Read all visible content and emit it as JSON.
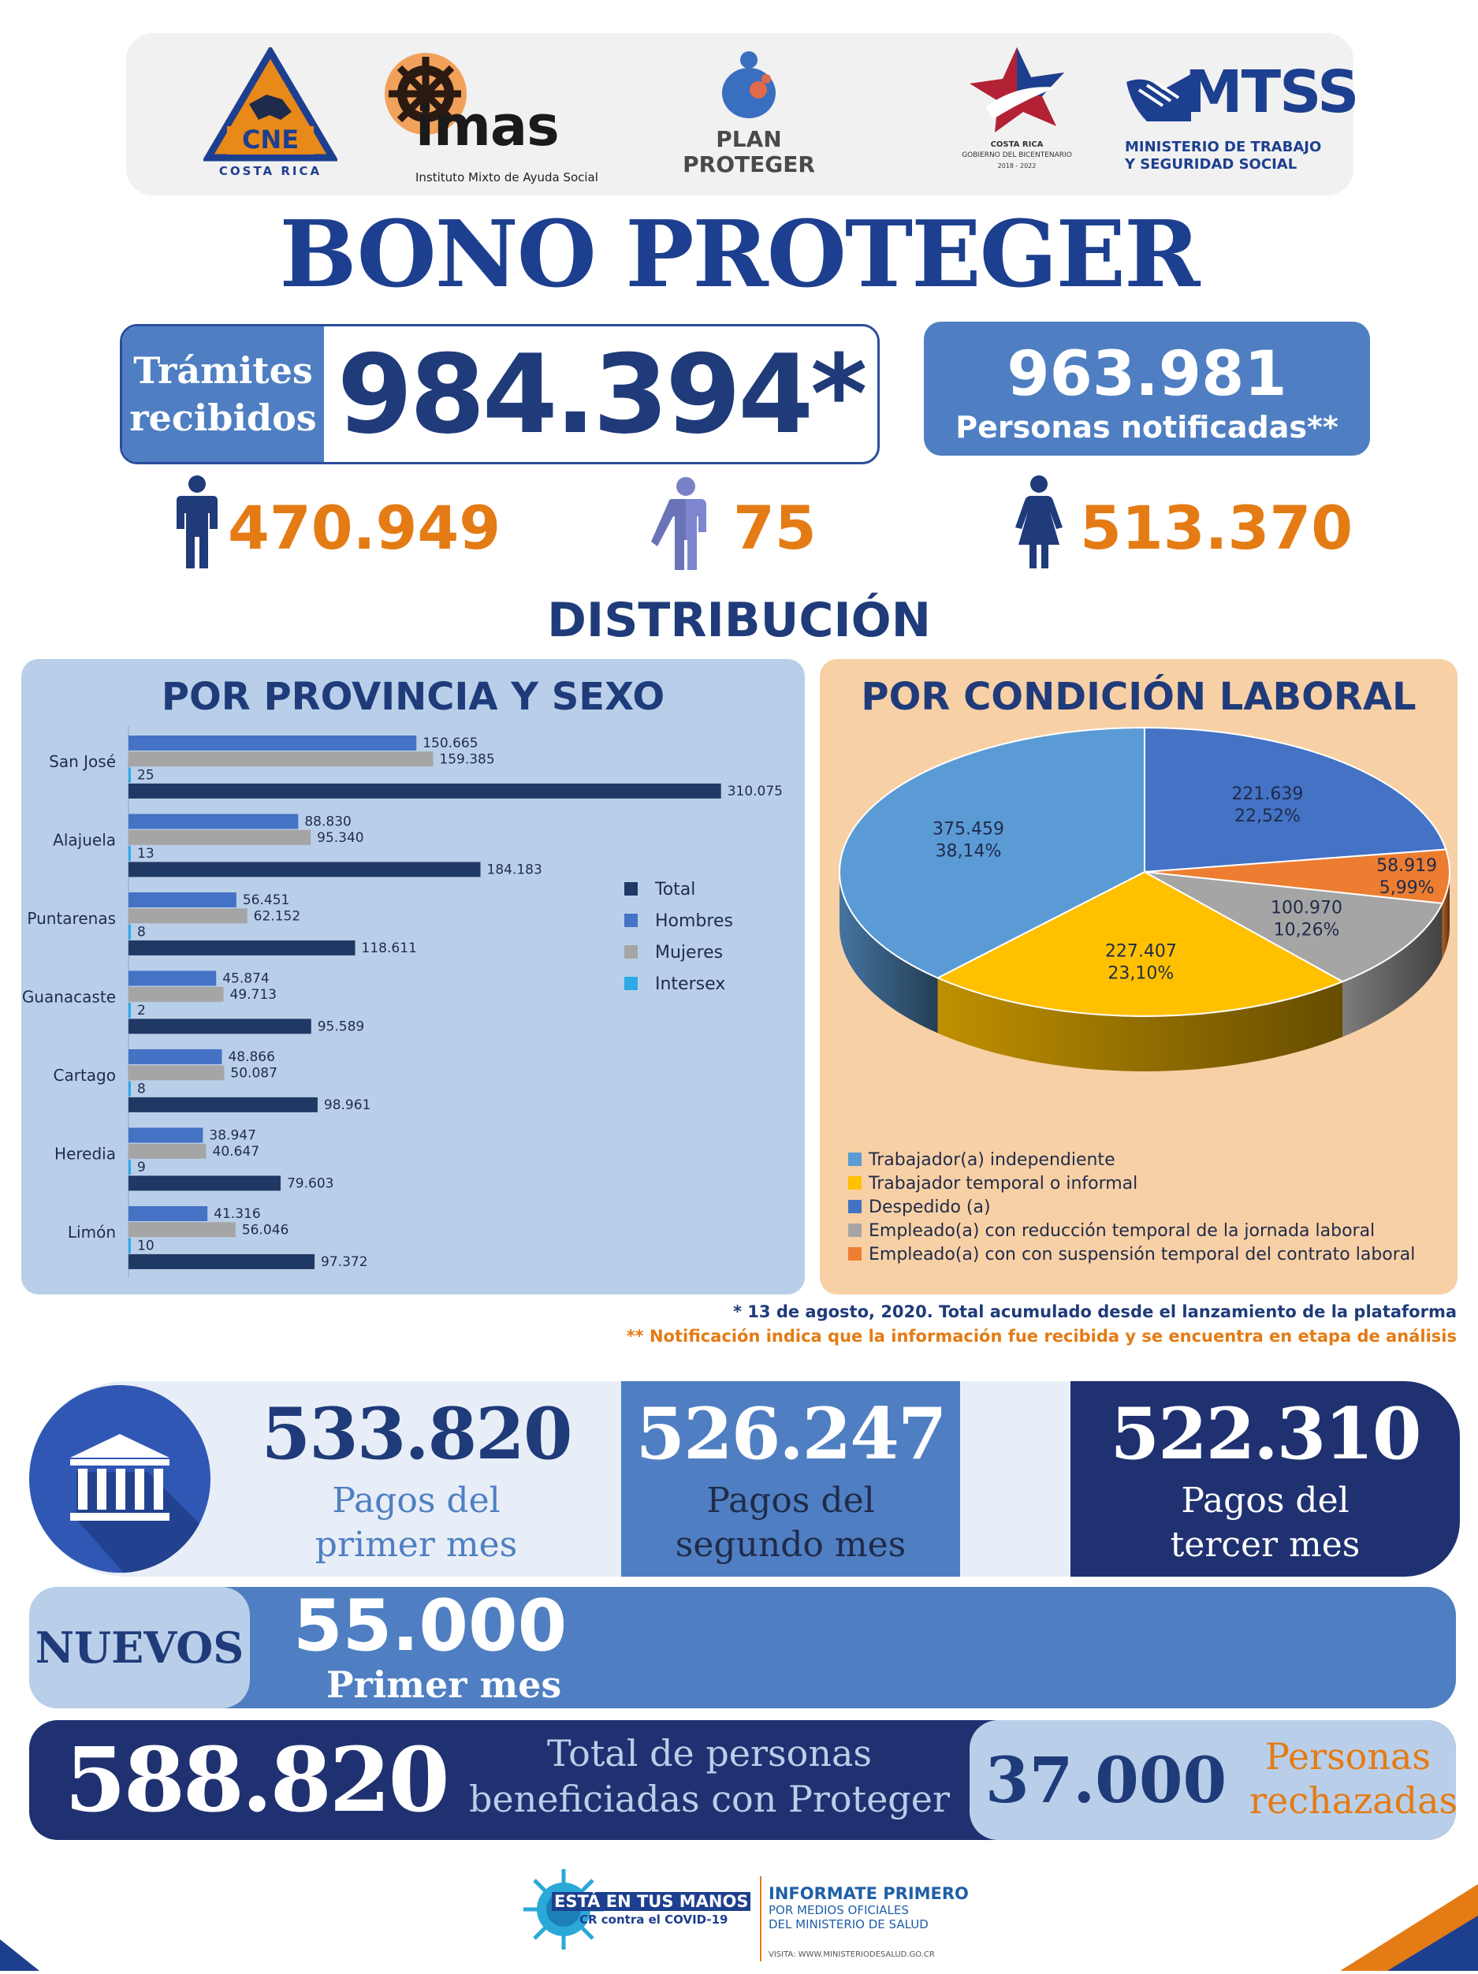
{
  "logos": {
    "cne": {
      "main": "CNE",
      "sub": "COSTA RICA"
    },
    "imas": {
      "main": "imas",
      "sub": "Instituto Mixto de Ayuda Social"
    },
    "plan": {
      "line1": "PLAN",
      "line2": "PROTEGER"
    },
    "gobierno": {
      "line1": "COSTA RICA",
      "line2": "GOBIERNO DEL BICENTENARIO",
      "line3": "2018 - 2022"
    },
    "mtss": {
      "main": "MTSS",
      "line1": "MINISTERIO DE TRABAJO",
      "line2": "Y SEGURIDAD SOCIAL"
    }
  },
  "title": "BONO PROTEGER",
  "tramites": {
    "label_line1": "Trámites",
    "label_line2": "recibidos",
    "value": "984.394*"
  },
  "notificadas": {
    "value": "963.981",
    "label": "Personas notificadas**"
  },
  "sex_counts": {
    "men": "470.949",
    "intersex": "75",
    "women": "513.370"
  },
  "distribution_title": "DISTRIBUCIÓN",
  "chart_data": [
    {
      "type": "bar",
      "title": "POR PROVINCIA Y SEXO",
      "orientation": "horizontal",
      "categories": [
        "San José",
        "Alajuela",
        "Puntarenas",
        "Guanacaste",
        "Cartago",
        "Heredia",
        "Limón"
      ],
      "series": [
        {
          "name": "Hombres",
          "color": "#4472c4",
          "values": [
            150665,
            88830,
            56451,
            45874,
            48866,
            38947,
            41316
          ],
          "labels": [
            "150.665",
            "88.830",
            "56.451",
            "45.874",
            "48.866",
            "38.947",
            "41.316"
          ]
        },
        {
          "name": "Mujeres",
          "color": "#a5a5a5",
          "values": [
            159385,
            95340,
            62152,
            49713,
            50087,
            40647,
            56046
          ],
          "labels": [
            "159.385",
            "95.340",
            "62.152",
            "49.713",
            "50.087",
            "40.647",
            "56.046"
          ]
        },
        {
          "name": "Intersex",
          "color": "#2fa8e6",
          "values": [
            25,
            13,
            8,
            2,
            8,
            9,
            10
          ],
          "labels": [
            "25",
            "13",
            "8",
            "2",
            "8",
            "9",
            "10"
          ]
        },
        {
          "name": "Total",
          "color": "#203864",
          "values": [
            310075,
            184183,
            118611,
            95589,
            98961,
            79603,
            97372
          ],
          "labels": [
            "310.075",
            "184.183",
            "118.611",
            "95.589",
            "98.961",
            "79.603",
            "97.372"
          ]
        }
      ],
      "legend": [
        "Total",
        "Hombres",
        "Mujeres",
        "Intersex"
      ],
      "legend_placement": "right",
      "xlim": [
        0,
        330000
      ]
    },
    {
      "type": "pie",
      "title": "POR CONDICIÓN LABORAL",
      "style": "3d",
      "slices": [
        {
          "name": "Despedido (a)",
          "value": 221639,
          "label": "221.639",
          "percent": "22,52%",
          "color": "#4472c4"
        },
        {
          "name": "Empleado(a) con con suspensión temporal del contrato laboral",
          "value": 58919,
          "label": "58.919",
          "percent": "5,99%",
          "color": "#ed7d31"
        },
        {
          "name": "Empleado(a) con reducción temporal de la jornada laboral",
          "value": 100970,
          "label": "100.970",
          "percent": "10,26%",
          "color": "#a5a5a5"
        },
        {
          "name": "Trabajador temporal o informal",
          "value": 227407,
          "label": "227.407",
          "percent": "23,10%",
          "color": "#ffc000"
        },
        {
          "name": "Trabajador(a) independiente",
          "value": 375459,
          "label": "375.459",
          "percent": "38,14%",
          "color": "#5b9bd5"
        }
      ],
      "legend": [
        {
          "name": "Trabajador(a) independiente",
          "color": "#5b9bd5"
        },
        {
          "name": "Trabajador temporal o informal",
          "color": "#ffc000"
        },
        {
          "name": "Despedido (a)",
          "color": "#4472c4"
        },
        {
          "name": "Empleado(a) con reducción temporal de la jornada laboral",
          "color": "#a5a5a5"
        },
        {
          "name": "Empleado(a) con con suspensión temporal del contrato laboral",
          "color": "#ed7d31"
        }
      ],
      "legend_placement": "bottom"
    }
  ],
  "footnotes": {
    "note1": "* 13 de agosto, 2020. Total acumulado desde el lanzamiento de la plataforma",
    "note2": "** Notificación indica que la información fue recibida y se encuentra en etapa de análisis"
  },
  "payments": {
    "first": {
      "value": "533.820",
      "label_line1": "Pagos del",
      "label_line2": "primer mes"
    },
    "second": {
      "value": "526.247",
      "label_line1": "Pagos del",
      "label_line2": "segundo mes"
    },
    "third": {
      "value": "522.310",
      "label_line1": "Pagos del",
      "label_line2": "tercer mes"
    }
  },
  "nuevos": {
    "label": "NUEVOS",
    "value": "55.000",
    "sub": "Primer mes"
  },
  "total_beneficiadas": {
    "value": "588.820",
    "label_line1": "Total de personas",
    "label_line2": "beneficiadas con Proteger"
  },
  "rechazadas": {
    "value": "37.000",
    "label_line1": "Personas",
    "label_line2": "rechazadas"
  },
  "footer": {
    "campaign_line1": "ESTÁ EN TUS MANOS",
    "campaign_line2": "CR contra el COVID-19",
    "info_title": "INFORMATE PRIMERO",
    "info_line1": "POR MEDIOS OFICIALES",
    "info_line2": "DEL MINISTERIO DE SALUD",
    "visit": "VISITA: WWW.MINISTERIODESALUD.GO.CR"
  },
  "colors": {
    "primary": "#1f3b7a",
    "accent": "#e47b14",
    "light_blue": "#b9cfe9",
    "mid_blue": "#4f7fc2",
    "dark_navy": "#1f3170",
    "peach": "#f8d0a6"
  }
}
